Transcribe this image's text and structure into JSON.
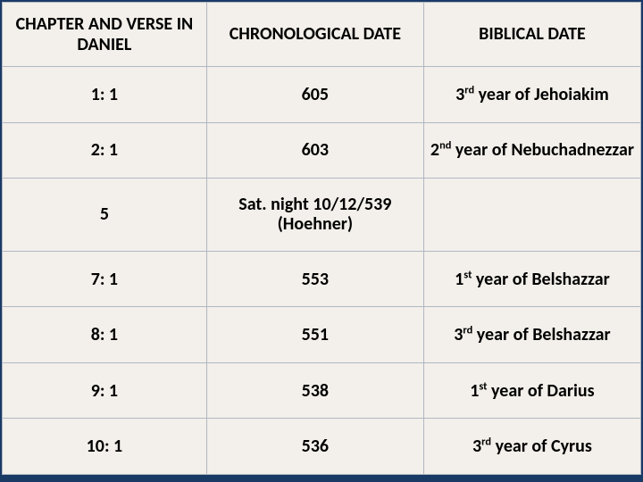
{
  "table": {
    "background_color": "#f3efea",
    "border_color": "#b0b8c4",
    "page_background": "#1a3a66",
    "font_family": "Calibri",
    "header_fontsize": 20,
    "cell_fontsize": 20,
    "columns": [
      {
        "label": "CHAPTER AND VERSE IN DANIEL",
        "width_pct": 32
      },
      {
        "label": "CHRONOLOGICAL DATE",
        "width_pct": 34
      },
      {
        "label": "BIBLICAL DATE",
        "width_pct": 34
      }
    ],
    "rows": [
      {
        "verse": "1: 1",
        "chron": "605",
        "biblical": "3rd year of Jehoiakim",
        "biblical_ordinal_index": 0
      },
      {
        "verse": "2: 1",
        "chron": "603",
        "biblical": "2nd year of Nebuchadnezzar",
        "biblical_ordinal_index": 0
      },
      {
        "verse": "5",
        "chron": "Sat. night 10/12/539 (Hoehner)",
        "biblical": ""
      },
      {
        "verse": "7: 1",
        "chron": "553",
        "biblical": "1st year of Belshazzar",
        "biblical_ordinal_index": 0
      },
      {
        "verse": "8: 1",
        "chron": "551",
        "biblical": "3rd year of Belshazzar",
        "biblical_ordinal_index": 0
      },
      {
        "verse": "9: 1",
        "chron": "538",
        "biblical": "1st year of Darius",
        "biblical_ordinal_index": 0
      },
      {
        "verse": "10: 1",
        "chron": "536",
        "biblical": "3rd year of Cyrus",
        "biblical_ordinal_index": 0
      }
    ]
  }
}
